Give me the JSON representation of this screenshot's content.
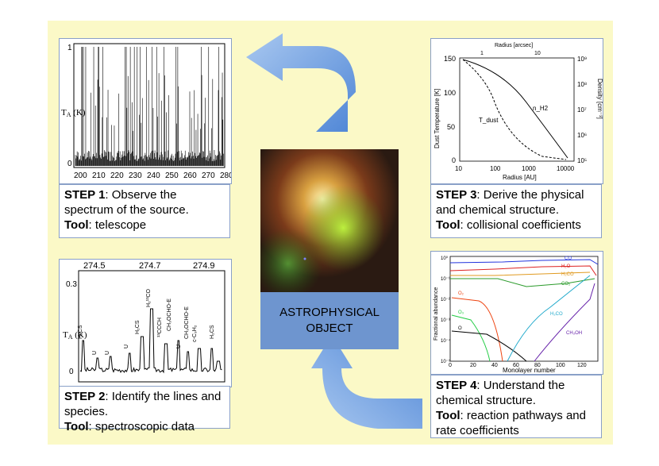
{
  "steps": [
    {
      "step": "STEP 1",
      "text": ": Observe the spectrum of the source.",
      "tool_label": "Tool",
      "tool": ": telescope"
    },
    {
      "step": "STEP 2",
      "text": ": Identify the lines and species.",
      "tool_label": "Tool",
      "tool": ": spectroscopic data"
    },
    {
      "step": "STEP 3",
      "text": ": Derive the physical and chemical structure.",
      "tool_label": "Tool",
      "tool": ": collisional coefficients"
    },
    {
      "step": "STEP 4",
      "text": ": Understand the chemical structure.",
      "tool_label": "Tool",
      "tool": ": reaction pathways and rate coefficients"
    }
  ],
  "center_label": "ASTROPHYSICAL OBJECT",
  "plot1": {
    "ylabel": "T",
    "ylabel_sub": "A",
    "ylabel_unit": " (K)",
    "yticks": [
      "1",
      "0"
    ],
    "xticks": [
      "200",
      "210",
      "220",
      "230",
      "240",
      "250",
      "260",
      "270",
      "280"
    ]
  },
  "plot2": {
    "ylabel": "T",
    "ylabel_sub": "A",
    "ylabel_unit": " (K)",
    "yticks": [
      "0.3",
      "0"
    ],
    "top_ticks": [
      "274.5",
      "274.7",
      "274.9"
    ],
    "lines": [
      "H₂CS",
      "U",
      "U",
      "U",
      "H₂CS",
      "H₂¹³CO",
      "¹³CCCH",
      "CH₃OCHO-E",
      "U",
      "CH₃OCHO-E",
      "c-C₃H₂",
      "H₂CS"
    ]
  },
  "plot3": {
    "top_label": "Radius [arcsec]",
    "top_ticks": [
      "1",
      "10"
    ],
    "ylabel_left": "Dust Temperature [K]",
    "ylabel_right": "Density [cm⁻³]",
    "xlabel": "Radius [AU]",
    "xticks": [
      "10",
      "100",
      "1000",
      "10000"
    ],
    "yticks_left": [
      "150",
      "100",
      "50",
      "0"
    ],
    "yticks_right": [
      "10⁹",
      "10⁸",
      "10⁷",
      "10⁶",
      "10⁵"
    ],
    "curve_labels": [
      "T_dust",
      "n_H2"
    ]
  },
  "plot4": {
    "ylabel": "Fractional abundance",
    "xlabel": "Monolayer number",
    "xticks": [
      "0",
      "20",
      "40",
      "60",
      "80",
      "100",
      "120"
    ],
    "yticks": [
      "10⁰",
      "10⁻¹",
      "10⁻²",
      "10⁻³",
      "10⁻⁴",
      "10⁻⁵"
    ],
    "series_labels": [
      "CO",
      "H₂O",
      "H₂CO",
      "CO₂",
      "O₂",
      "O₃",
      "O",
      "H₂CO",
      "CH₃OH"
    ]
  },
  "colors": {
    "background": "#fbf9c7",
    "arrow": "#5b8fd8",
    "center_label_bg": "#6e95cf",
    "panel_border": "#8aa0c8"
  }
}
